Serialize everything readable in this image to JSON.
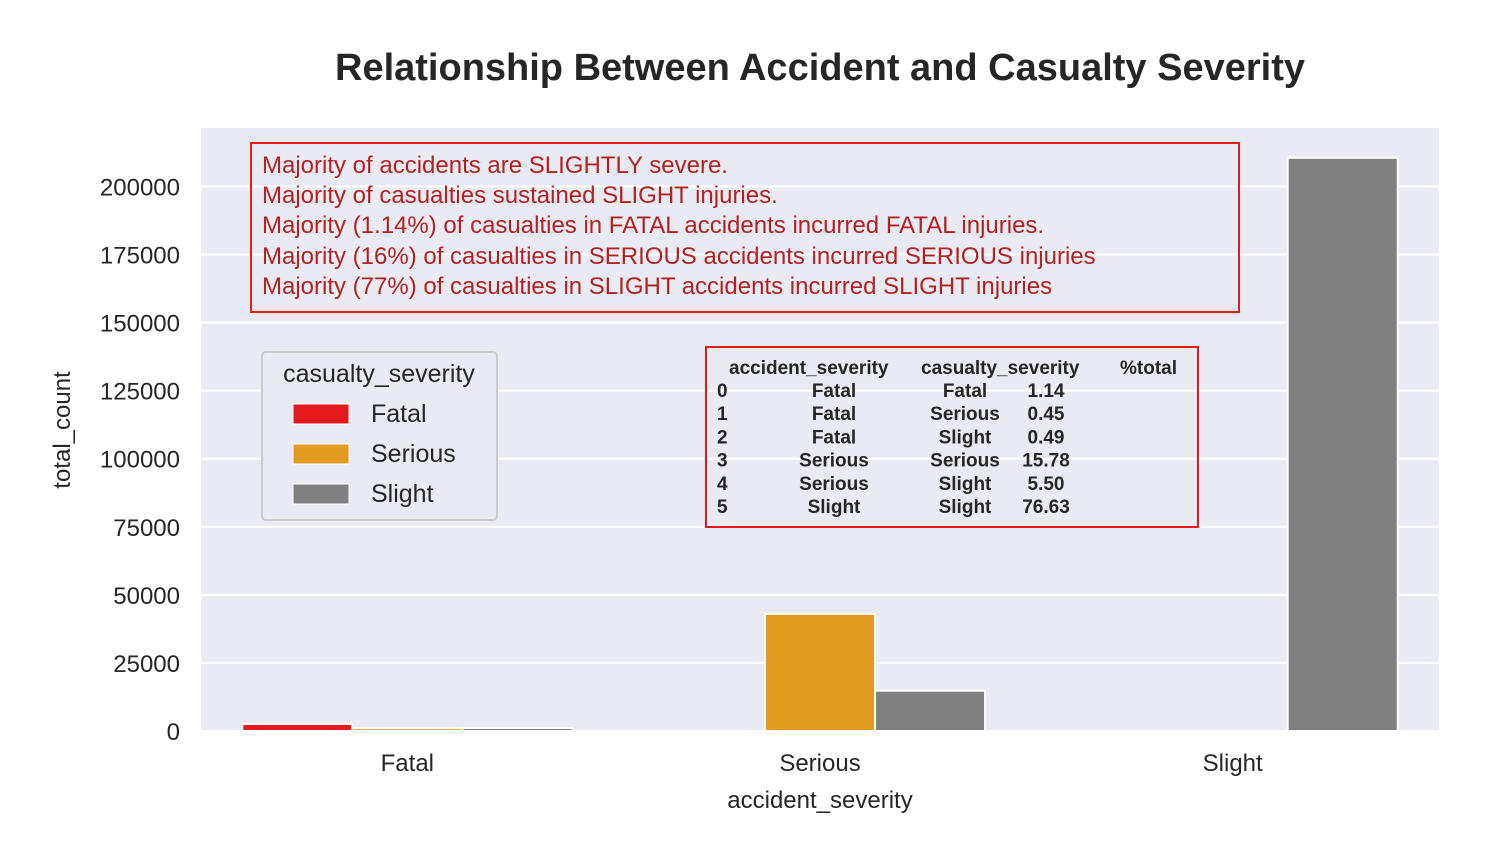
{
  "chart_data": {
    "type": "bar",
    "title": "Relationship Between Accident and Casualty Severity",
    "xlabel": "accident_severity",
    "ylabel": "total_count",
    "categories": [
      "Fatal",
      "Serious",
      "Slight"
    ],
    "ylim": [
      0,
      220000
    ],
    "yticks": [
      0,
      25000,
      50000,
      75000,
      100000,
      125000,
      150000,
      175000,
      200000
    ],
    "grid": true,
    "legend": {
      "title": "casualty_severity",
      "placement": "upper-left"
    },
    "series": [
      {
        "name": "Fatal",
        "color": "#e41a1c",
        "values": [
          2600,
          0,
          0
        ]
      },
      {
        "name": "Serious",
        "color": "#e09b20",
        "values": [
          1000,
          43000,
          0
        ]
      },
      {
        "name": "Slight",
        "color": "#808080",
        "values": [
          1100,
          14800,
          210500
        ]
      }
    ]
  },
  "annotation": {
    "lines": [
      "Majority of accidents are SLIGHTLY severe.",
      "Majority of casualties sustained SLIGHT injuries.",
      "Majority (1.14%) of casualties in FATAL accidents incurred FATAL injuries.",
      "Majority (16%) of casualties in SERIOUS accidents incurred SERIOUS injuries",
      "Majority (77%) of casualties in SLIGHT accidents incurred SLIGHT injuries"
    ],
    "color": "#b22222"
  },
  "summary_table": {
    "columns": [
      "accident_severity",
      "casualty_severity",
      "%total"
    ],
    "rows": [
      [
        "0",
        "Fatal",
        "Fatal",
        "1.14"
      ],
      [
        "1",
        "Fatal",
        "Serious",
        "0.45"
      ],
      [
        "2",
        "Fatal",
        "Slight",
        "0.49"
      ],
      [
        "3",
        "Serious",
        "Serious",
        "15.78"
      ],
      [
        "4",
        "Serious",
        "Slight",
        "5.50"
      ],
      [
        "5",
        "Slight",
        "Slight",
        "76.63"
      ]
    ]
  }
}
